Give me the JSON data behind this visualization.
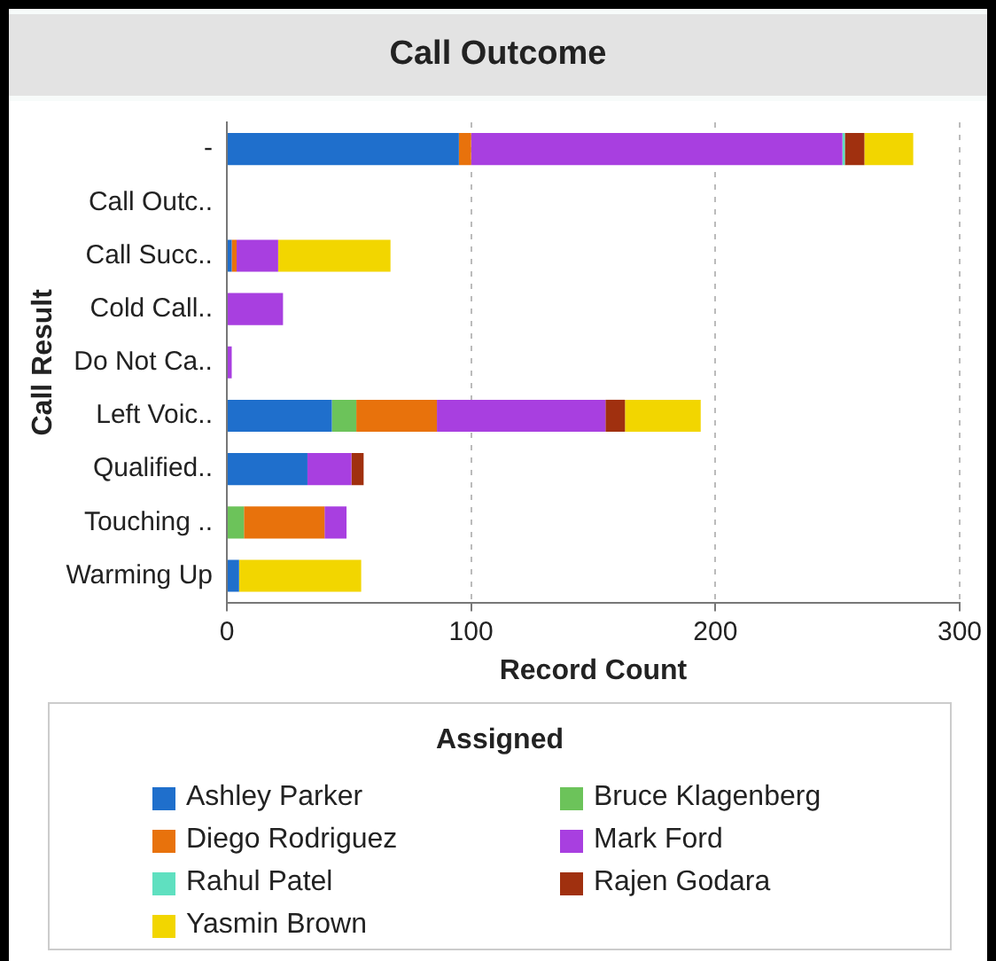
{
  "chart_data": {
    "type": "bar",
    "orientation": "horizontal",
    "stacked": true,
    "title": "Call Outcome",
    "xlabel": "Record Count",
    "ylabel": "Call Result",
    "legend_title": "Assigned",
    "legend": "bottom",
    "grid": "x",
    "categories": [
      "-",
      "Call Outc..",
      "Call Succ..",
      "Cold Call..",
      "Do Not Ca..",
      "Left Voic..",
      "Qualified..",
      "Touching ..",
      "Warming Up"
    ],
    "xlim": [
      0,
      300
    ],
    "xticks": [
      0,
      100,
      200,
      300
    ],
    "series": [
      {
        "name": "Ashley Parker",
        "color": "#1f6fcc",
        "values": [
          95,
          0,
          2,
          0,
          0,
          43,
          33,
          0,
          5
        ]
      },
      {
        "name": "Bruce Klagenberg",
        "color": "#6cc35a",
        "values": [
          0,
          0,
          0,
          0,
          0,
          10,
          0,
          7,
          0
        ]
      },
      {
        "name": "Diego Rodriguez",
        "color": "#e8720c",
        "values": [
          5,
          0,
          2,
          0,
          0,
          33,
          0,
          33,
          0
        ]
      },
      {
        "name": "Mark Ford",
        "color": "#a83fe0",
        "values": [
          152,
          0,
          17,
          23,
          2,
          69,
          18,
          9,
          0
        ]
      },
      {
        "name": "Rahul Patel",
        "color": "#5fe0c0",
        "values": [
          1,
          0,
          0,
          0,
          0,
          0,
          0,
          0,
          0
        ]
      },
      {
        "name": "Rajen Godara",
        "color": "#a0300f",
        "values": [
          8,
          0,
          0,
          0,
          0,
          8,
          5,
          0,
          0
        ]
      },
      {
        "name": "Yasmin Brown",
        "color": "#f2d600",
        "values": [
          20,
          0,
          46,
          0,
          0,
          31,
          0,
          0,
          50
        ]
      }
    ]
  }
}
